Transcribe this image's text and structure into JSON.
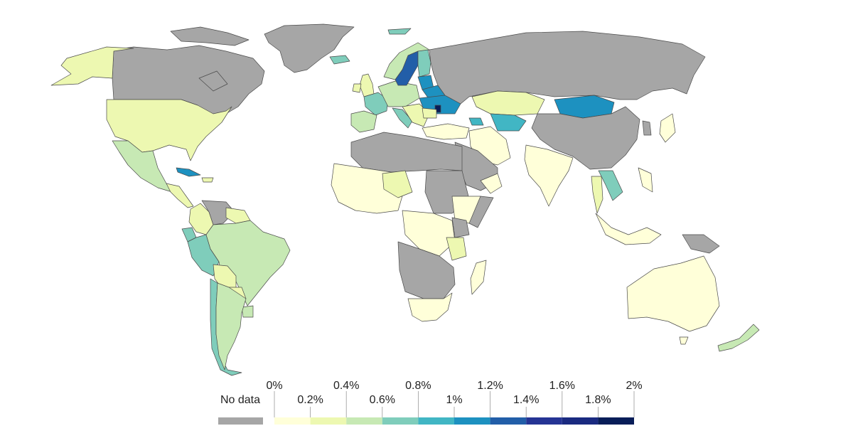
{
  "legend": {
    "no_data_label": "No data",
    "no_data_color": "#a6a6a6",
    "ticks_top": [
      "0%",
      "0.4%",
      "0.8%",
      "1.2%",
      "1.6%",
      "2%"
    ],
    "ticks_bottom": [
      "0.2%",
      "0.6%",
      "1%",
      "1.4%",
      "1.8%"
    ],
    "bins": [
      {
        "range": "0–0.2%",
        "color": "#ffffd9"
      },
      {
        "range": "0.2–0.4%",
        "color": "#edf8b1"
      },
      {
        "range": "0.4–0.6%",
        "color": "#c7e9b4"
      },
      {
        "range": "0.6–0.8%",
        "color": "#7fcdbb"
      },
      {
        "range": "0.8–1%",
        "color": "#41b6c4"
      },
      {
        "range": "1–1.2%",
        "color": "#1d91c0"
      },
      {
        "range": "1.2–1.4%",
        "color": "#225ea8"
      },
      {
        "range": "1.4–1.6%",
        "color": "#253494"
      },
      {
        "range": "1.6–1.8%",
        "color": "#1a2a80"
      },
      {
        "range": "1.8–2%",
        "color": "#081d58"
      }
    ]
  },
  "colors": {
    "background": "#ffffff",
    "border": "#4a4a4a"
  }
}
